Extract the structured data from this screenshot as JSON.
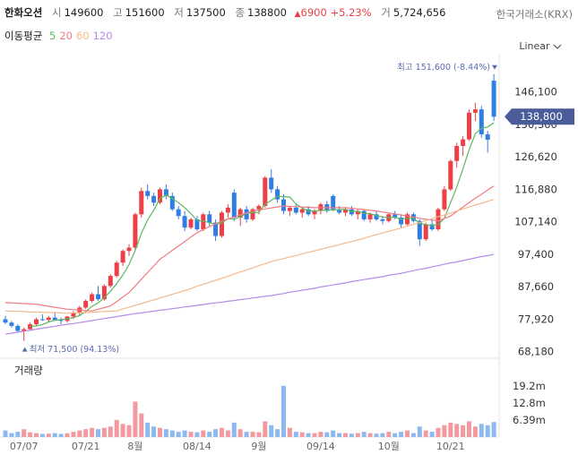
{
  "header": {
    "name": "한화오션",
    "open_label": "시",
    "open": 149600,
    "high_label": "고",
    "high": 151600,
    "low_label": "저",
    "low": 137500,
    "close_label": "종",
    "close": 138800,
    "change": 6900,
    "change_pct": "+5.23%",
    "volume_label": "거",
    "volume": "5,724,656",
    "exchange": "한국거래소(KRX)",
    "scale": "Linear"
  },
  "chart_data": {
    "type": "candlestick",
    "legend_title": "이동평균",
    "categories": [
      null,
      null,
      null,
      "07/07",
      null,
      null,
      null,
      null,
      null,
      null,
      null,
      null,
      null,
      "07/21",
      null,
      null,
      null,
      null,
      null,
      null,
      null,
      "8월",
      null,
      null,
      null,
      null,
      null,
      null,
      null,
      null,
      null,
      "08/14",
      null,
      null,
      null,
      null,
      null,
      null,
      null,
      null,
      null,
      "9월",
      null,
      null,
      null,
      null,
      null,
      null,
      null,
      null,
      null,
      "09/14",
      null,
      null,
      null,
      null,
      null,
      null,
      null,
      null,
      null,
      null,
      "10월",
      null,
      null,
      null,
      null,
      null,
      null,
      null,
      null,
      null,
      "10/21",
      null,
      null,
      null,
      null,
      null,
      null,
      null
    ],
    "up_color": "#ec3f48",
    "down_color": "#2f7ee4",
    "up_volume_color": "#f29aa0",
    "down_volume_color": "#8cb9f0",
    "candles": {
      "open": [
        78000,
        77000,
        76000,
        74500,
        75000,
        76500,
        78000,
        77800,
        78500,
        77800,
        77500,
        78800,
        80000,
        81500,
        83500,
        85500,
        84000,
        88000,
        91000,
        95000,
        98500,
        99500,
        109500,
        116500,
        115000,
        113000,
        117000,
        115000,
        111000,
        109000,
        105500,
        108000,
        105000,
        109500,
        107000,
        103000,
        110000,
        116000,
        108500,
        111000,
        108000,
        111000,
        112000,
        120500,
        117000,
        114000,
        110500,
        111500,
        110000,
        111000,
        109500,
        110500,
        112500,
        115000,
        111000,
        110000,
        111000,
        109500,
        110500,
        108000,
        109500,
        108000,
        107500,
        109500,
        108500,
        106500,
        109500,
        107500,
        102000,
        106500,
        105000,
        111000,
        117000,
        125500,
        130000,
        132000,
        140000,
        141000,
        133500,
        149600
      ],
      "high": [
        79000,
        77500,
        76500,
        75500,
        77000,
        78500,
        79500,
        79000,
        80000,
        78500,
        79000,
        80500,
        82000,
        84000,
        86000,
        88000,
        88500,
        91500,
        95500,
        99000,
        100500,
        110000,
        117500,
        118500,
        116000,
        117500,
        118500,
        116000,
        112000,
        110500,
        108500,
        109000,
        110000,
        110500,
        108000,
        110500,
        112500,
        117000,
        111500,
        112000,
        111500,
        112500,
        121000,
        123000,
        118000,
        115500,
        112000,
        112500,
        111500,
        112000,
        111000,
        113000,
        113500,
        115500,
        112000,
        111500,
        112000,
        111000,
        111000,
        110000,
        110500,
        109000,
        110000,
        110500,
        109500,
        110000,
        110000,
        108000,
        107000,
        108000,
        111500,
        118000,
        126000,
        131000,
        133000,
        141000,
        143000,
        142000,
        134500,
        151600
      ],
      "low": [
        76500,
        75500,
        74000,
        71500,
        74500,
        76000,
        77500,
        77000,
        77500,
        76500,
        77000,
        78000,
        79000,
        81000,
        83000,
        83500,
        83500,
        87500,
        90500,
        94000,
        97000,
        99000,
        108500,
        114000,
        112000,
        112500,
        114000,
        110500,
        108000,
        104500,
        105000,
        104500,
        104500,
        106000,
        101500,
        102500,
        108500,
        107500,
        106000,
        107000,
        107500,
        109500,
        111500,
        116000,
        113000,
        109500,
        109000,
        109500,
        108500,
        109000,
        108000,
        109500,
        110000,
        110500,
        109500,
        109000,
        109000,
        108000,
        107500,
        107000,
        107500,
        106500,
        107000,
        108000,
        105500,
        106000,
        107000,
        100000,
        101500,
        104500,
        104500,
        110500,
        116500,
        123500,
        127000,
        131500,
        137500,
        132500,
        128000,
        137500
      ],
      "close": [
        77000,
        76000,
        74500,
        75000,
        76500,
        78000,
        77800,
        78500,
        77800,
        77500,
        78800,
        80000,
        81500,
        83500,
        85500,
        84000,
        88000,
        91000,
        95000,
        98500,
        99500,
        109500,
        116500,
        115000,
        113000,
        117000,
        115000,
        111000,
        109000,
        105500,
        108000,
        105000,
        109500,
        107000,
        103000,
        110000,
        111500,
        108500,
        111000,
        108000,
        111000,
        112000,
        120500,
        117000,
        114000,
        110500,
        111500,
        110000,
        111000,
        109500,
        110500,
        112500,
        110500,
        111000,
        110000,
        111000,
        109500,
        110500,
        108000,
        109500,
        108000,
        107500,
        109500,
        108500,
        106500,
        109500,
        107500,
        102000,
        106500,
        105000,
        111000,
        117000,
        125500,
        130000,
        132000,
        140000,
        141000,
        133500,
        131900,
        138800
      ]
    },
    "series": [
      {
        "name": "5",
        "color": "#5cb85c",
        "values": [
          null,
          null,
          null,
          null,
          75800,
          76000,
          76400,
          77200,
          77700,
          77900,
          78100,
          78500,
          79100,
          80300,
          81900,
          82900,
          84500,
          86400,
          88700,
          91300,
          94400,
          98700,
          103800,
          107800,
          110700,
          114200,
          115300,
          114200,
          113000,
          111500,
          109700,
          107700,
          107400,
          107000,
          106500,
          106900,
          108200,
          108000,
          108800,
          109800,
          110000,
          110100,
          112500,
          113700,
          114900,
          114800,
          114700,
          112600,
          111400,
          110500,
          110500,
          110700,
          110800,
          110800,
          110900,
          111000,
          110400,
          110400,
          109800,
          109700,
          109100,
          108700,
          108500,
          108600,
          108000,
          108300,
          108300,
          106800,
          106400,
          106100,
          106400,
          108300,
          113000,
          117700,
          123100,
          128900,
          133700,
          135300,
          135700,
          137000
        ]
      },
      {
        "name": "20",
        "color": "#f07a82",
        "values": [
          83000,
          82900,
          82800,
          82700,
          82600,
          82500,
          82200,
          81900,
          81600,
          81300,
          81000,
          80900,
          80800,
          80600,
          80500,
          81000,
          81500,
          82000,
          83300,
          84700,
          86000,
          88000,
          90000,
          92000,
          94000,
          96000,
          97300,
          98700,
          100000,
          101300,
          102700,
          104000,
          104900,
          105800,
          106600,
          107500,
          108100,
          108700,
          109300,
          109900,
          110500,
          110800,
          111100,
          111400,
          111700,
          112000,
          111900,
          111800,
          111700,
          111600,
          111500,
          111500,
          111500,
          111500,
          111500,
          111500,
          111300,
          111100,
          110900,
          110700,
          110500,
          110200,
          109900,
          109600,
          109300,
          109000,
          108700,
          108300,
          108000,
          107800,
          107500,
          108300,
          109000,
          110300,
          111700,
          113000,
          114300,
          115500,
          116800,
          118000
        ]
      },
      {
        "name": "60",
        "color": "#f4b98c",
        "values": [
          80500,
          80400,
          80400,
          80300,
          80200,
          80200,
          80100,
          80000,
          80000,
          79900,
          79800,
          79900,
          80000,
          80000,
          80100,
          80200,
          80300,
          80400,
          80500,
          81100,
          81600,
          82200,
          82700,
          83300,
          83800,
          84400,
          84900,
          85500,
          86000,
          86600,
          87200,
          87900,
          88500,
          89100,
          89700,
          90300,
          90900,
          91600,
          92200,
          92800,
          93400,
          94100,
          94700,
          95300,
          95800,
          96200,
          96700,
          97100,
          97600,
          98100,
          98500,
          99000,
          99500,
          99900,
          100400,
          100900,
          101300,
          101800,
          102300,
          102900,
          103400,
          103900,
          104400,
          104900,
          105400,
          106000,
          106500,
          107000,
          107600,
          108200,
          108800,
          109300,
          109900,
          110500,
          111100,
          111700,
          112300,
          112800,
          113400,
          114000
        ]
      },
      {
        "name": "120",
        "color": "#b48be8",
        "values": [
          73500,
          73800,
          74100,
          74400,
          74700,
          75000,
          75300,
          75600,
          75900,
          76200,
          76500,
          76700,
          77000,
          77300,
          77600,
          77900,
          78200,
          78500,
          78800,
          79100,
          79400,
          79700,
          79900,
          80200,
          80400,
          80700,
          80900,
          81200,
          81400,
          81700,
          81900,
          82200,
          82400,
          82700,
          82900,
          83100,
          83400,
          83600,
          83900,
          84100,
          84400,
          84600,
          84900,
          85100,
          85400,
          85700,
          86100,
          86400,
          86700,
          87000,
          87300,
          87700,
          88000,
          88300,
          88600,
          88900,
          89300,
          89600,
          89900,
          90200,
          90500,
          90800,
          91200,
          91500,
          91800,
          92200,
          92600,
          93000,
          93300,
          93700,
          94100,
          94500,
          94900,
          95200,
          95600,
          96000,
          96400,
          96800,
          97100,
          97500
        ]
      }
    ],
    "ylim": [
      66300,
      157700
    ],
    "yticks": [
      {
        "value": 68180,
        "label": "68,180"
      },
      {
        "value": 77920,
        "label": "77,920"
      },
      {
        "value": 87660,
        "label": "87,660"
      },
      {
        "value": 97400,
        "label": "97,400"
      },
      {
        "value": 107140,
        "label": "107,140"
      },
      {
        "value": 116880,
        "label": "116,880"
      },
      {
        "value": 126620,
        "label": "126,620"
      },
      {
        "value": 136360,
        "label": "136,360"
      },
      {
        "value": 146100,
        "label": "146,100"
      }
    ],
    "grid": false,
    "last_label": "138,800",
    "annotations": {
      "max": "최고 151,600 (-8.44%)",
      "min": "최저 71,500 (94.13%)"
    },
    "volume": {
      "label": "거래량",
      "values": [
        2500000,
        1500000,
        2000000,
        3000000,
        1800000,
        1500000,
        1200000,
        1300000,
        1500000,
        1200000,
        1400000,
        2000000,
        2500000,
        3000000,
        3500000,
        3000000,
        3500000,
        4000000,
        6500000,
        5000000,
        4500000,
        13500000,
        9000000,
        5500000,
        4000000,
        3500000,
        3000000,
        2500000,
        2000000,
        2500000,
        2000000,
        1800000,
        2500000,
        2000000,
        3000000,
        3500000,
        2500000,
        5500000,
        3000000,
        2000000,
        2000000,
        1800000,
        6000000,
        4500000,
        3000000,
        19500000,
        3500000,
        2000000,
        1800000,
        1500000,
        1500000,
        2000000,
        1800000,
        2500000,
        1500000,
        1500000,
        1300000,
        1500000,
        2000000,
        1500000,
        1300000,
        1500000,
        2000000,
        1500000,
        2000000,
        2500000,
        1500000,
        4000000,
        2500000,
        2000000,
        3500000,
        4500000,
        5500000,
        5000000,
        4500000,
        6000000,
        4000000,
        5000000,
        4500000,
        5724656
      ],
      "ylim": [
        0,
        21500000
      ],
      "yticks": [
        {
          "value": 6390000,
          "label": "6.39m"
        },
        {
          "value": 12800000,
          "label": "12.8m"
        },
        {
          "value": 19200000,
          "label": "19.2m"
        }
      ]
    }
  }
}
